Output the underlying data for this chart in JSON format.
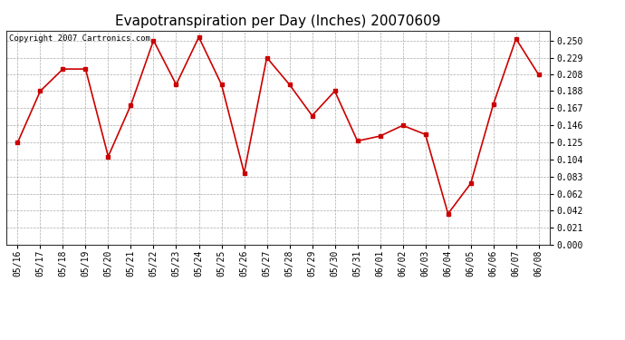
{
  "title": "Evapotranspiration per Day (Inches) 20070609",
  "copyright_text": "Copyright 2007 Cartronics.com",
  "dates": [
    "05/16",
    "05/17",
    "05/18",
    "05/19",
    "05/20",
    "05/21",
    "05/22",
    "05/23",
    "05/24",
    "05/25",
    "05/26",
    "05/27",
    "05/28",
    "05/29",
    "05/30",
    "05/31",
    "06/01",
    "06/02",
    "06/03",
    "06/04",
    "06/05",
    "06/06",
    "06/07",
    "06/08"
  ],
  "values": [
    0.125,
    0.188,
    0.215,
    0.215,
    0.108,
    0.171,
    0.25,
    0.196,
    0.254,
    0.196,
    0.088,
    0.229,
    0.196,
    0.158,
    0.188,
    0.127,
    0.133,
    0.146,
    0.135,
    0.038,
    0.075,
    0.172,
    0.252,
    0.208
  ],
  "yticks": [
    0.0,
    0.021,
    0.042,
    0.062,
    0.083,
    0.104,
    0.125,
    0.146,
    0.167,
    0.188,
    0.208,
    0.229,
    0.25
  ],
  "ylim": [
    0.0,
    0.262
  ],
  "line_color": "#cc0000",
  "marker": "s",
  "marker_size": 3,
  "grid_color": "#aaaaaa",
  "bg_color": "#ffffff",
  "plot_bg_color": "#ffffff",
  "title_fontsize": 11,
  "tick_fontsize": 7,
  "copyright_fontsize": 6.5
}
